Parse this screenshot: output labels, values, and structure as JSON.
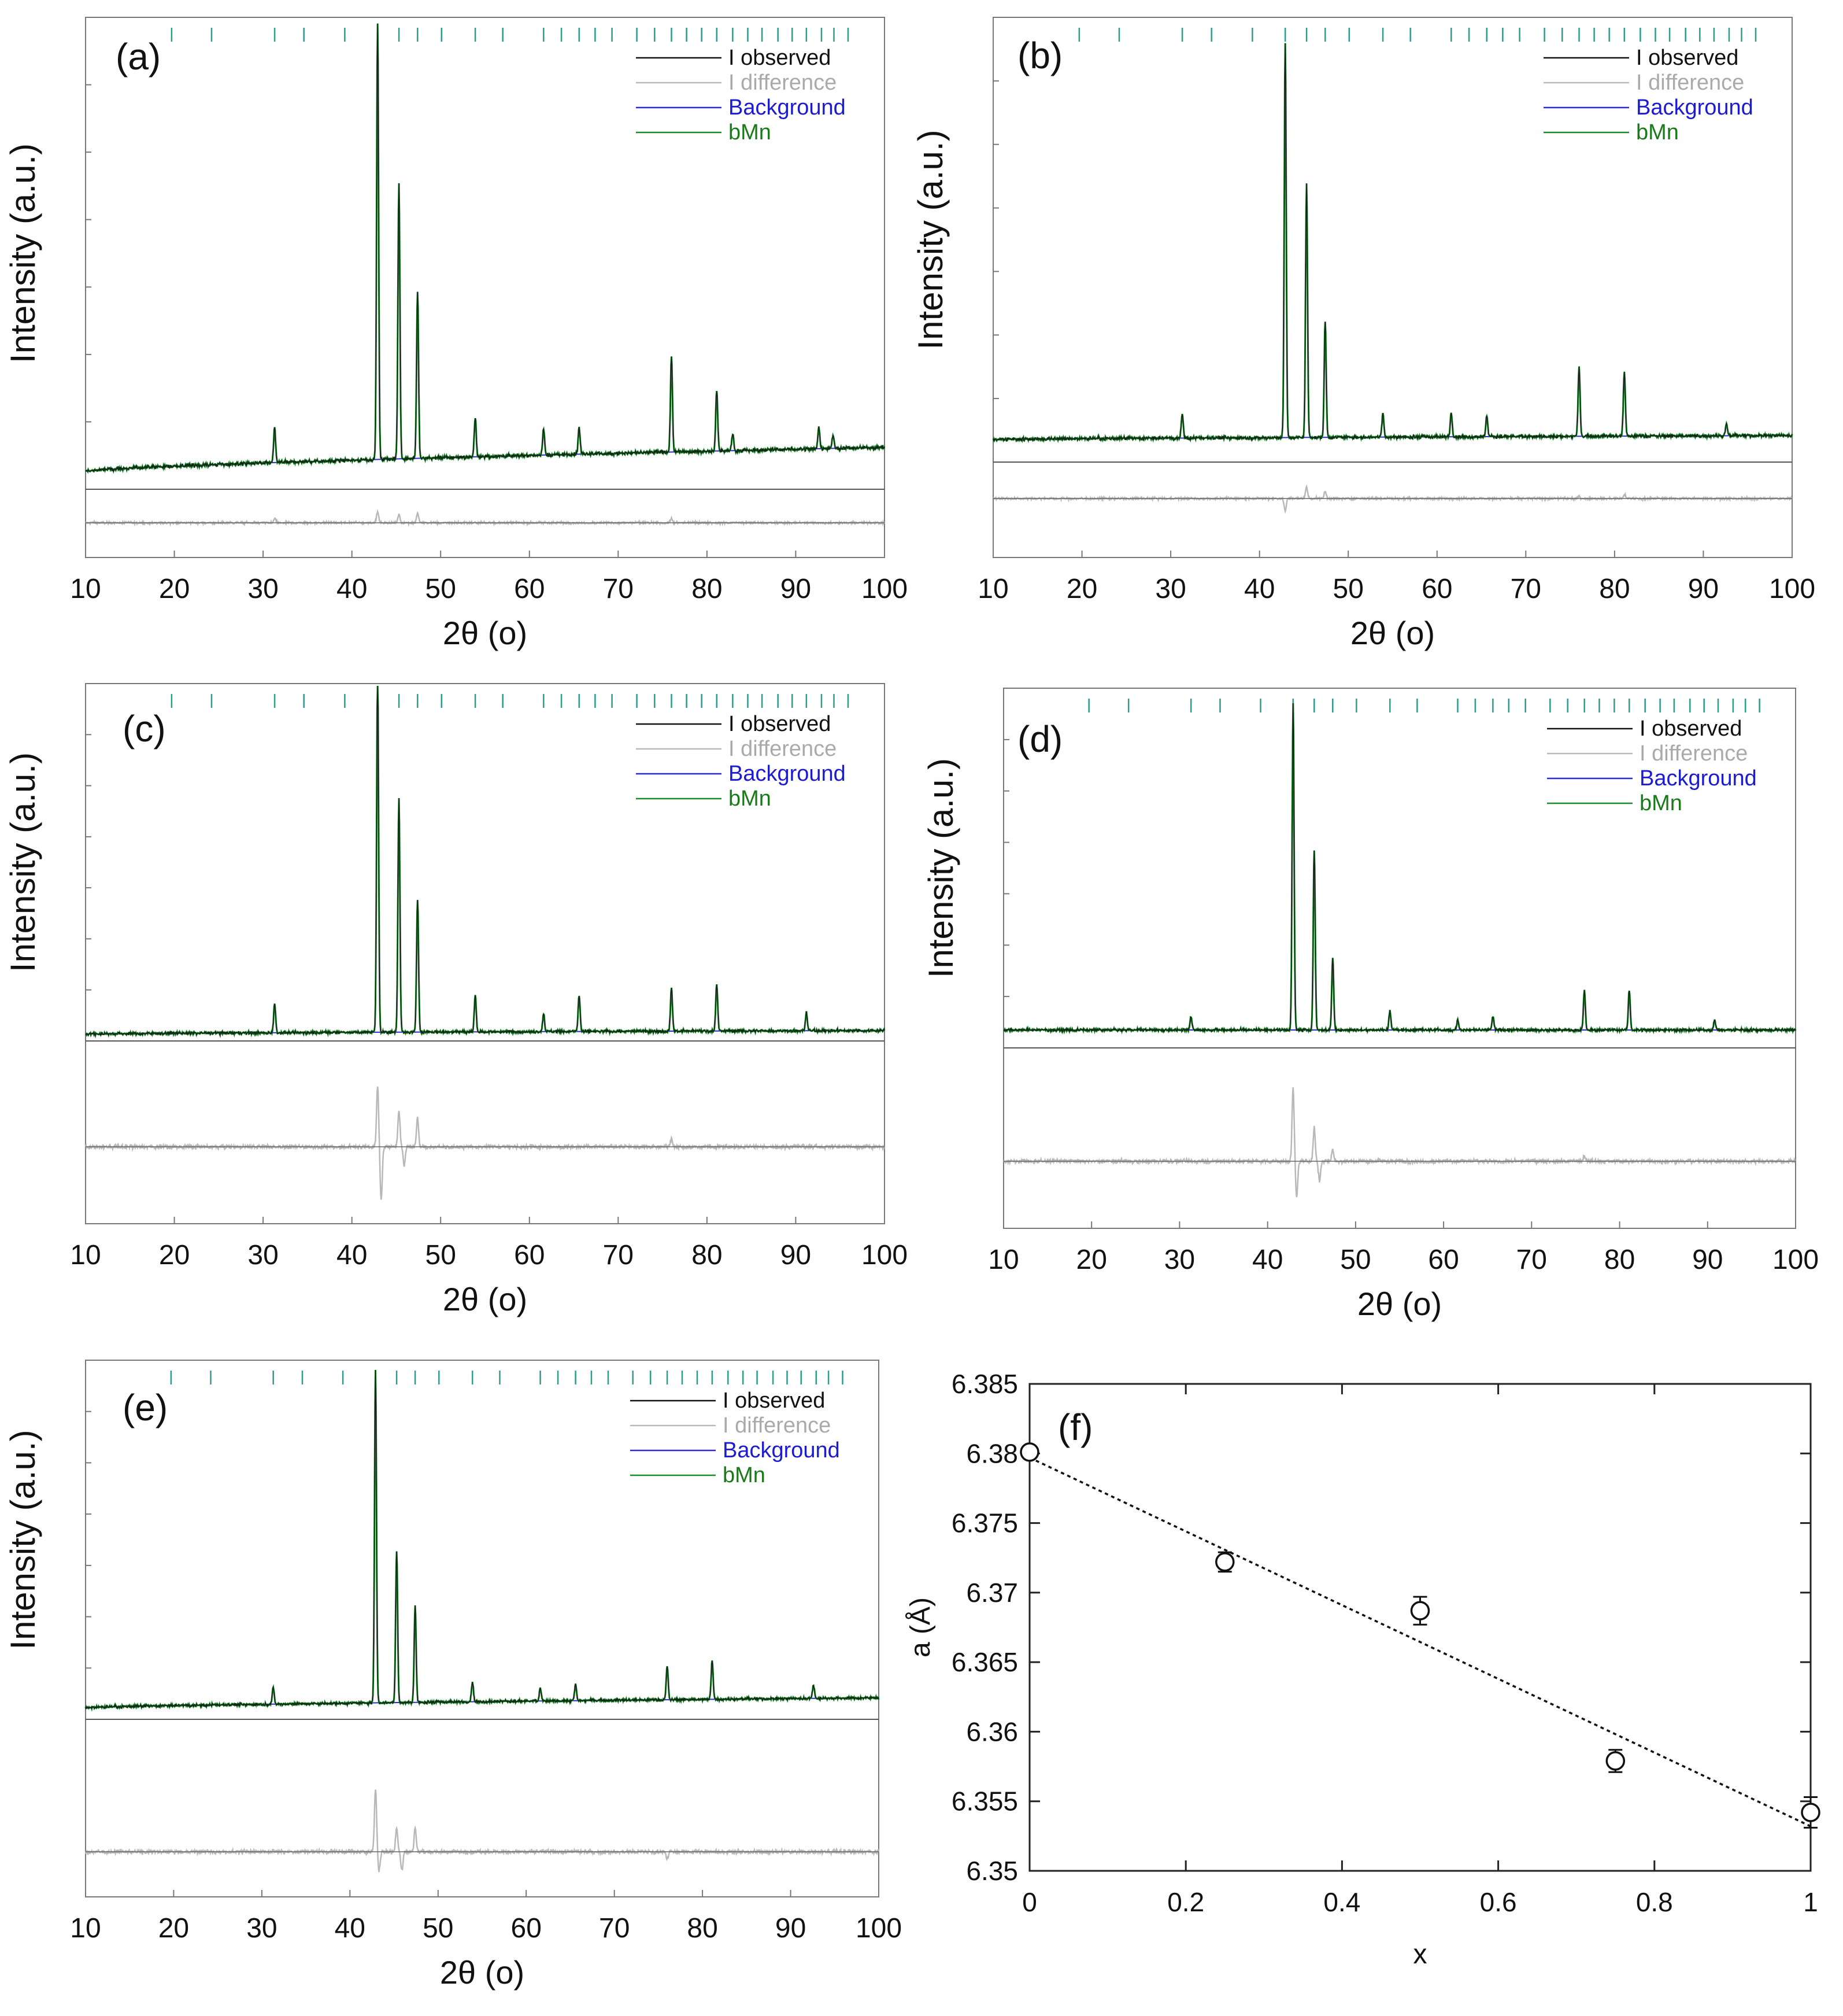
{
  "chart_data": [
    {
      "panel": "(a)",
      "type": "line",
      "xlabel": "2θ (o)",
      "ylabel": "Intensity (a.u.)",
      "xlim": [
        10,
        100
      ],
      "xticks": [
        10,
        20,
        30,
        40,
        50,
        60,
        70,
        80,
        90,
        100
      ],
      "legend": [
        "I observed",
        "I difference",
        "Background",
        "bMn"
      ],
      "legend_position": "top-right",
      "background": [
        0.02,
        0.075
      ],
      "peaks": [
        [
          31.3,
          0.08
        ],
        [
          42.9,
          1.0
        ],
        [
          45.3,
          0.63
        ],
        [
          47.4,
          0.38
        ],
        [
          53.9,
          0.09
        ],
        [
          61.6,
          0.06
        ],
        [
          65.6,
          0.06
        ],
        [
          76.0,
          0.22
        ],
        [
          81.1,
          0.14
        ],
        [
          82.9,
          0.04
        ],
        [
          92.6,
          0.05
        ],
        [
          94.2,
          0.03
        ]
      ],
      "diff_peaks": [
        [
          31.3,
          0.03
        ],
        [
          42.9,
          0.08
        ],
        [
          45.3,
          0.06
        ],
        [
          47.4,
          0.07
        ],
        [
          76.0,
          0.03
        ]
      ],
      "reflection_ticks": [
        19.7,
        24.2,
        31.3,
        34.6,
        39.2,
        42.9,
        45.3,
        47.4,
        50.1,
        53.9,
        57.0,
        61.6,
        63.6,
        65.6,
        67.4,
        69.3,
        72.1,
        74.1,
        76.0,
        77.7,
        79.4,
        81.1,
        82.9,
        84.6,
        86.2,
        88.0,
        89.6,
        91.2,
        92.9,
        94.3,
        95.9
      ]
    },
    {
      "panel": "(b)",
      "type": "line",
      "xlabel": "2θ (o)",
      "ylabel": "Intensity (a.u.)",
      "xlim": [
        10,
        100
      ],
      "xticks": [
        10,
        20,
        30,
        40,
        50,
        60,
        70,
        80,
        90,
        100
      ],
      "legend": [
        "I observed",
        "I difference",
        "Background",
        "bMn"
      ],
      "legend_position": "top-right",
      "background": [
        0.27,
        0.28
      ],
      "peaks": [
        [
          31.3,
          0.06
        ],
        [
          42.9,
          0.98
        ],
        [
          45.3,
          0.63
        ],
        [
          47.4,
          0.29
        ],
        [
          53.9,
          0.06
        ],
        [
          61.6,
          0.06
        ],
        [
          65.6,
          0.05
        ],
        [
          76.0,
          0.17
        ],
        [
          81.1,
          0.16
        ],
        [
          92.6,
          0.03
        ]
      ],
      "diff_peaks": [
        [
          42.9,
          -0.09
        ],
        [
          45.3,
          0.08
        ],
        [
          47.4,
          0.05
        ],
        [
          76.0,
          0.02
        ],
        [
          81.1,
          0.03
        ]
      ],
      "reflection_ticks": [
        19.7,
        24.2,
        31.3,
        34.6,
        39.2,
        42.9,
        45.3,
        47.4,
        50.1,
        53.9,
        57.0,
        61.6,
        63.6,
        65.6,
        67.4,
        69.3,
        72.1,
        74.1,
        76.0,
        77.7,
        79.4,
        81.1,
        82.9,
        84.6,
        86.2,
        88.0,
        89.6,
        91.2,
        92.9,
        94.3,
        95.9
      ]
    },
    {
      "panel": "(c)",
      "type": "line",
      "xlabel": "2θ (o)",
      "ylabel": "Intensity (a.u.)",
      "xlim": [
        10,
        100
      ],
      "xticks": [
        10,
        20,
        30,
        40,
        50,
        60,
        70,
        80,
        90,
        100
      ],
      "legend": [
        "I observed",
        "I difference",
        "Background",
        "bMn"
      ],
      "legend_position": "top-right",
      "background": [
        0.07,
        0.08
      ],
      "peaks": [
        [
          31.3,
          0.08
        ],
        [
          42.9,
          1.0
        ],
        [
          45.3,
          0.65
        ],
        [
          47.4,
          0.37
        ],
        [
          53.9,
          0.1
        ],
        [
          61.6,
          0.05
        ],
        [
          65.6,
          0.1
        ],
        [
          76.0,
          0.12
        ],
        [
          81.1,
          0.13
        ],
        [
          91.2,
          0.05
        ]
      ],
      "diff_peaks": [
        [
          42.9,
          0.25
        ],
        [
          43.3,
          -0.22
        ],
        [
          45.3,
          0.15
        ],
        [
          45.9,
          -0.08
        ],
        [
          47.4,
          0.12
        ],
        [
          76.0,
          0.03
        ]
      ],
      "reflection_ticks": [
        19.7,
        24.2,
        31.3,
        34.6,
        39.2,
        42.9,
        45.3,
        47.4,
        50.1,
        53.9,
        57.0,
        61.6,
        63.6,
        65.6,
        67.4,
        69.3,
        72.1,
        74.1,
        76.0,
        77.7,
        79.4,
        81.1,
        82.9,
        84.6,
        86.2,
        88.0,
        89.6,
        91.2,
        92.9,
        94.3,
        95.9
      ]
    },
    {
      "panel": "(d)",
      "type": "line",
      "xlabel": "2θ (o)",
      "ylabel": "Intensity (a.u.)",
      "xlim": [
        10,
        100
      ],
      "xticks": [
        10,
        20,
        30,
        40,
        50,
        60,
        70,
        80,
        90,
        100
      ],
      "legend": [
        "I observed",
        "I difference",
        "Background",
        "bMn"
      ],
      "legend_position": "top-right",
      "background": [
        0.04,
        0.04
      ],
      "peaks": [
        [
          31.3,
          0.04
        ],
        [
          42.9,
          1.0
        ],
        [
          45.3,
          0.55
        ],
        [
          47.4,
          0.22
        ],
        [
          53.9,
          0.06
        ],
        [
          61.6,
          0.03
        ],
        [
          65.6,
          0.04
        ],
        [
          76.0,
          0.12
        ],
        [
          81.1,
          0.12
        ],
        [
          90.8,
          0.03
        ]
      ],
      "diff_peaks": [
        [
          42.9,
          0.3
        ],
        [
          43.3,
          -0.15
        ],
        [
          45.3,
          0.14
        ],
        [
          45.9,
          -0.08
        ],
        [
          47.4,
          0.05
        ],
        [
          76.0,
          0.02
        ]
      ],
      "reflection_ticks": [
        19.7,
        24.2,
        31.3,
        34.6,
        39.2,
        42.9,
        45.3,
        47.4,
        50.1,
        53.9,
        57.0,
        61.6,
        63.6,
        65.6,
        67.4,
        69.3,
        72.1,
        74.1,
        76.0,
        77.7,
        79.4,
        81.1,
        82.9,
        84.6,
        86.2,
        88.0,
        89.6,
        91.2,
        92.9,
        94.3,
        95.9
      ]
    },
    {
      "panel": "(e)",
      "type": "line",
      "xlabel": "2θ (o)",
      "ylabel": "Intensity (a.u.)",
      "xlim": [
        10,
        100
      ],
      "xticks": [
        10,
        20,
        30,
        40,
        50,
        60,
        70,
        80,
        90,
        100
      ],
      "legend": [
        "I observed",
        "I difference",
        "Background",
        "bMn"
      ],
      "legend_position": "top-right",
      "background": [
        0.04,
        0.07
      ],
      "peaks": [
        [
          31.3,
          0.05
        ],
        [
          42.9,
          1.0
        ],
        [
          45.3,
          0.46
        ],
        [
          47.4,
          0.29
        ],
        [
          53.9,
          0.06
        ],
        [
          61.6,
          0.04
        ],
        [
          65.6,
          0.05
        ],
        [
          76.0,
          0.1
        ],
        [
          81.1,
          0.12
        ],
        [
          92.6,
          0.04
        ]
      ],
      "diff_peaks": [
        [
          42.9,
          0.26
        ],
        [
          43.3,
          -0.08
        ],
        [
          45.3,
          0.1
        ],
        [
          45.9,
          -0.08
        ],
        [
          47.4,
          0.1
        ],
        [
          76.0,
          -0.03
        ]
      ],
      "reflection_ticks": [
        19.7,
        24.2,
        31.3,
        34.6,
        39.2,
        42.9,
        45.3,
        47.4,
        50.1,
        53.9,
        57.0,
        61.6,
        63.6,
        65.6,
        67.4,
        69.3,
        72.1,
        74.1,
        76.0,
        77.7,
        79.4,
        81.1,
        82.9,
        84.6,
        86.2,
        88.0,
        89.6,
        91.2,
        92.9,
        94.3,
        95.9
      ]
    },
    {
      "panel": "(f)",
      "type": "scatter",
      "xlabel": "x",
      "ylabel": "a (Å)",
      "xlim": [
        0,
        1
      ],
      "ylim": [
        6.35,
        6.385
      ],
      "xticks": [
        "0",
        "0.2",
        "0.4",
        "0.6",
        "0.8",
        "1"
      ],
      "yticks": [
        "6.35",
        "6.355",
        "6.36",
        "6.365",
        "6.37",
        "6.375",
        "6.38",
        "6.385"
      ],
      "x": [
        0,
        0.25,
        0.5,
        0.75,
        1.0
      ],
      "y": [
        6.3801,
        6.3722,
        6.3687,
        6.3579,
        6.3542
      ],
      "yerr": [
        0.0003,
        0.0007,
        0.001,
        0.0008,
        0.0011
      ],
      "fit_line": {
        "x": [
          0,
          1
        ],
        "y": [
          6.3797,
          6.3532
        ],
        "style": "dotted"
      }
    }
  ],
  "colors": {
    "observed": "#111111",
    "difference": "#b8b8b8",
    "background": "#2b2bd6",
    "phase": "#1a8a2a",
    "phase_ticks": "#2e9c8a",
    "frame": "#777777"
  }
}
